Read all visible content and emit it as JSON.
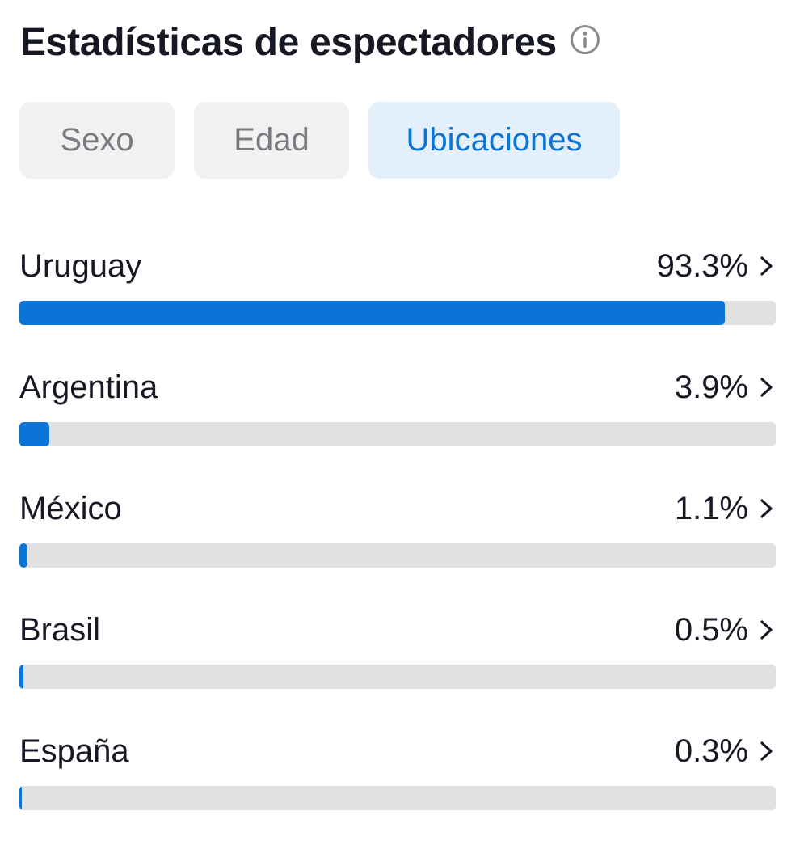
{
  "header": {
    "title": "Estadísticas de espectadores",
    "info_icon": "info-icon"
  },
  "tabs": [
    {
      "label": "Sexo",
      "active": false
    },
    {
      "label": "Edad",
      "active": false
    },
    {
      "label": "Ubicaciones",
      "active": true
    }
  ],
  "locations": [
    {
      "country": "Uruguay",
      "percent_label": "93.3%",
      "value": 93.3
    },
    {
      "country": "Argentina",
      "percent_label": "3.9%",
      "value": 3.9
    },
    {
      "country": "México",
      "percent_label": "1.1%",
      "value": 1.1
    },
    {
      "country": "Brasil",
      "percent_label": "0.5%",
      "value": 0.5
    },
    {
      "country": "España",
      "percent_label": "0.3%",
      "value": 0.3
    }
  ],
  "colors": {
    "accent": "#0a75d6",
    "active_tab_bg": "#e3f0fb",
    "inactive_tab_bg": "#f1f1f2",
    "track": "#e1e1e2"
  },
  "icons": {
    "row_arrow": "chevron-right-icon"
  }
}
